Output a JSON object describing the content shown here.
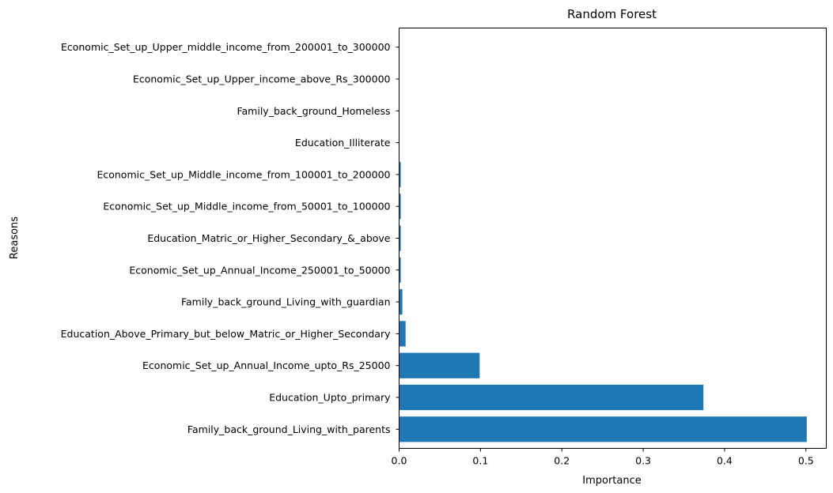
{
  "chart_data": {
    "type": "bar",
    "orientation": "horizontal",
    "title": "Random Forest",
    "xlabel": "Importance",
    "ylabel": "Reasons",
    "xlim": [
      0,
      0.525
    ],
    "xticks": [
      0.0,
      0.1,
      0.2,
      0.3,
      0.4,
      0.5
    ],
    "xtick_labels": [
      "0.0",
      "0.1",
      "0.2",
      "0.3",
      "0.4",
      "0.5"
    ],
    "grid": false,
    "bar_color": "#1f77b4",
    "categories": [
      "Family_back_ground_Living_with_parents",
      "Education_Upto_primary",
      "Economic_Set_up_Annual_Income_upto_Rs_25000",
      "Education_Above_Primary_but_below_Matric_or_Higher_Secondary",
      "Family_back_ground_Living_with_guardian",
      "Economic_Set_up_Annual_Income_250001_to_50000",
      "Education_Matric_or_Higher_Secondary_&_above",
      "Economic_Set_up_Middle_income_from_50001_to_100000",
      "Economic_Set_up_Middle_income_from_100001_to_200000",
      "Education_Illiterate",
      "Family_back_ground_Homeless",
      "Economic_Set_up_Upper_income_above_Rs_300000",
      "Economic_Set_up_Upper_middle_income_from_200001_to_300000"
    ],
    "values": [
      0.501,
      0.374,
      0.099,
      0.008,
      0.004,
      0.002,
      0.002,
      0.002,
      0.002,
      0.0,
      0.0,
      0.0,
      0.0
    ]
  }
}
